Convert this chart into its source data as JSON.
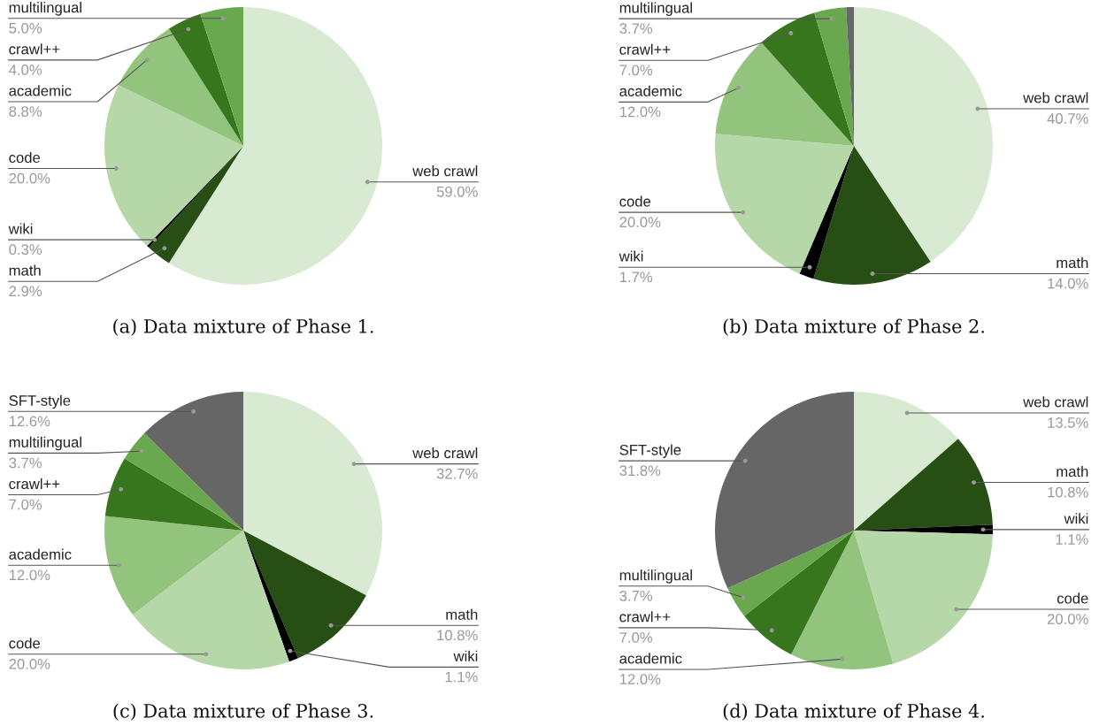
{
  "chart_data": [
    {
      "type": "pie",
      "title": "(a) Data mixture of Phase 1.",
      "categories": [
        "web crawl",
        "math",
        "wiki",
        "code",
        "academic",
        "crawl++",
        "multilingual"
      ],
      "values": [
        59.0,
        2.9,
        0.3,
        20.0,
        8.8,
        4.0,
        5.0
      ],
      "colors": [
        "#d9ead3",
        "#274e13",
        "#000000",
        "#b6d7a8",
        "#93c47d",
        "#38761d",
        "#6aa84f"
      ],
      "value_labels": [
        "59.0%",
        "2.9%",
        "0.3%",
        "20.0%",
        "8.8%",
        "4.0%",
        "5.0%"
      ]
    },
    {
      "type": "pie",
      "title": "(b) Data mixture of Phase 2.",
      "categories": [
        "web crawl",
        "math",
        "wiki",
        "code",
        "academic",
        "crawl++",
        "multilingual",
        null
      ],
      "values": [
        40.7,
        14.0,
        1.7,
        20.0,
        12.0,
        7.0,
        3.7,
        0.9
      ],
      "colors": [
        "#d9ead3",
        "#274e13",
        "#000000",
        "#b6d7a8",
        "#93c47d",
        "#38761d",
        "#6aa84f",
        "#666666"
      ],
      "value_labels": [
        "40.7%",
        "14.0%",
        "1.7%",
        "20.0%",
        "12.0%",
        "7.0%",
        "3.7%",
        null
      ]
    },
    {
      "type": "pie",
      "title": "(c) Data mixture of Phase 3.",
      "categories": [
        "web crawl",
        "math",
        "wiki",
        "code",
        "academic",
        "crawl++",
        "multilingual",
        "SFT-style"
      ],
      "values": [
        32.7,
        10.8,
        1.1,
        20.0,
        12.0,
        7.0,
        3.7,
        12.6
      ],
      "colors": [
        "#d9ead3",
        "#274e13",
        "#000000",
        "#b6d7a8",
        "#93c47d",
        "#38761d",
        "#6aa84f",
        "#666666"
      ],
      "value_labels": [
        "32.7%",
        "10.8%",
        "1.1%",
        "20.0%",
        "12.0%",
        "7.0%",
        "3.7%",
        "12.6%"
      ]
    },
    {
      "type": "pie",
      "title": "(d) Data mixture of Phase 4.",
      "categories": [
        "web crawl",
        "math",
        "wiki",
        "code",
        "academic",
        "crawl++",
        "multilingual",
        "SFT-style"
      ],
      "values": [
        13.5,
        10.8,
        1.1,
        20.0,
        12.0,
        7.0,
        3.7,
        31.8
      ],
      "colors": [
        "#d9ead3",
        "#274e13",
        "#000000",
        "#b6d7a8",
        "#93c47d",
        "#38761d",
        "#6aa84f",
        "#666666"
      ],
      "value_labels": [
        "13.5%",
        "10.8%",
        "1.1%",
        "20.0%",
        "12.0%",
        "7.0%",
        "3.7%",
        "31.8%"
      ]
    }
  ]
}
